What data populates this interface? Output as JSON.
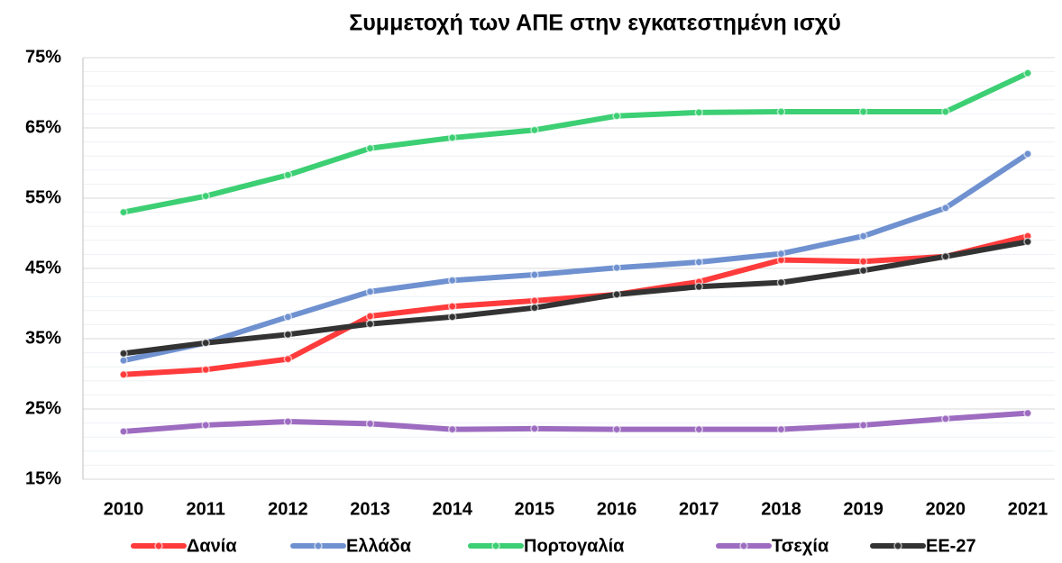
{
  "chart_data": {
    "type": "line",
    "title": "Συμμετοχή των ΑΠΕ στην εγκατεστημένη ισχύ",
    "categories": [
      "2010",
      "2011",
      "2012",
      "2013",
      "2014",
      "2015",
      "2016",
      "2017",
      "2018",
      "2019",
      "2020",
      "2021"
    ],
    "series": [
      {
        "name": "Δανία",
        "color": "#ff3b3b",
        "values": [
          29.9,
          30.6,
          32.1,
          38.2,
          39.6,
          40.4,
          41.3,
          43.1,
          46.2,
          46.0,
          46.7,
          49.6
        ]
      },
      {
        "name": "Ελλάδα",
        "color": "#6f91d0",
        "values": [
          31.9,
          34.4,
          38.1,
          41.7,
          43.3,
          44.1,
          45.1,
          45.9,
          47.1,
          49.6,
          53.6,
          61.3
        ]
      },
      {
        "name": "Πορτογαλία",
        "color": "#3ccf73",
        "values": [
          53.0,
          55.3,
          58.3,
          62.1,
          63.6,
          64.7,
          66.7,
          67.2,
          67.3,
          67.3,
          67.3,
          72.8
        ]
      },
      {
        "name": "Τσεχία",
        "color": "#9d6cc0",
        "values": [
          21.8,
          22.7,
          23.2,
          22.9,
          22.1,
          22.2,
          22.1,
          22.1,
          22.1,
          22.7,
          23.6,
          24.4
        ]
      },
      {
        "name": "ΕΕ-27",
        "color": "#333333",
        "values": [
          32.9,
          34.4,
          35.6,
          37.1,
          38.1,
          39.4,
          41.3,
          42.4,
          43.0,
          44.7,
          46.7,
          48.8
        ]
      }
    ],
    "ylim": [
      15,
      75
    ],
    "yticks": [
      {
        "value": 15,
        "label": "15%"
      },
      {
        "value": 25,
        "label": "25%"
      },
      {
        "value": 35,
        "label": "35%"
      },
      {
        "value": 45,
        "label": "45%"
      },
      {
        "value": 55,
        "label": "55%"
      },
      {
        "value": 65,
        "label": "65%"
      },
      {
        "value": 75,
        "label": "75%"
      }
    ],
    "grid": true,
    "legend": "bottom"
  }
}
